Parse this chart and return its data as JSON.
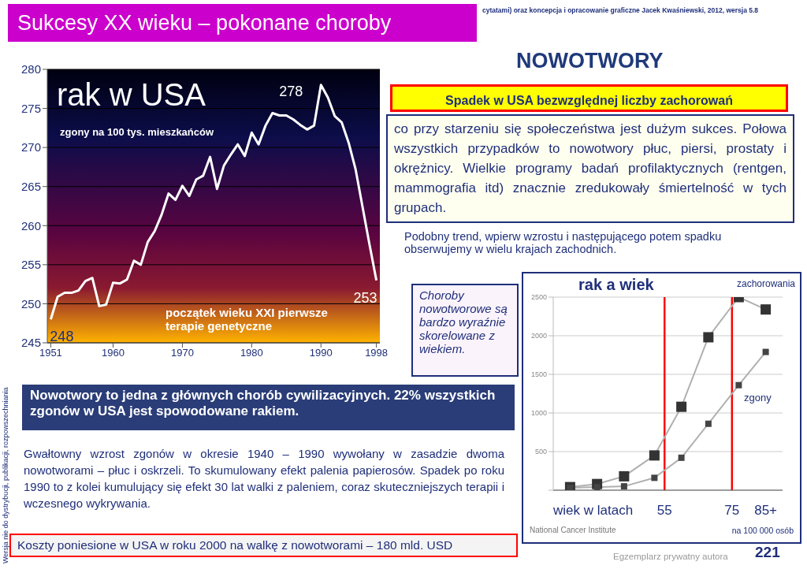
{
  "chart_data": [
    {
      "type": "line",
      "title": "rak w USA",
      "subtitle": "zgony na 100 tys. mieszkańców",
      "annotations": [
        "początek wieku XXI pierwsze terapie genetyczne"
      ],
      "x": [
        1951,
        1952,
        1953,
        1954,
        1955,
        1956,
        1957,
        1958,
        1959,
        1960,
        1961,
        1962,
        1963,
        1964,
        1965,
        1966,
        1967,
        1968,
        1969,
        1970,
        1971,
        1972,
        1973,
        1974,
        1975,
        1976,
        1977,
        1978,
        1979,
        1980,
        1981,
        1982,
        1983,
        1984,
        1985,
        1986,
        1987,
        1988,
        1989,
        1990,
        1991,
        1992,
        1993,
        1994,
        1995,
        1996,
        1997,
        1998
      ],
      "series": [
        {
          "color": "#ffffff",
          "values": [
            248,
            250.9,
            251.4,
            251.4,
            251.7,
            252.9,
            253.3,
            249.7,
            249.9,
            252.7,
            252.6,
            253.1,
            255.5,
            255,
            257.9,
            259.3,
            261.4,
            264.1,
            263.3,
            265.1,
            263.8,
            265.9,
            266.4,
            268.8,
            264.7,
            267.7,
            269.1,
            270.4,
            268.9,
            271.9,
            270.4,
            272.8,
            274.4,
            274.1,
            274.1,
            273.6,
            272.9,
            272.3,
            272.8,
            278,
            276.4,
            274,
            273.2,
            270.6,
            267.2,
            262.4,
            257.6,
            253
          ],
          "value_labels": [
            "248",
            null,
            null,
            null,
            null,
            null,
            null,
            null,
            null,
            null,
            null,
            null,
            null,
            null,
            null,
            null,
            null,
            null,
            null,
            null,
            null,
            null,
            null,
            null,
            null,
            null,
            null,
            null,
            null,
            null,
            null,
            null,
            null,
            null,
            null,
            null,
            null,
            null,
            null,
            "278",
            null,
            null,
            null,
            null,
            null,
            null,
            null,
            "253"
          ]
        }
      ],
      "xlim": [
        1950.5,
        1998.5
      ],
      "xticks": [
        1951,
        1960,
        1970,
        1980,
        1990,
        1998
      ],
      "ylim": [
        245,
        280
      ],
      "yticks": [
        245,
        250,
        255,
        260,
        265,
        270,
        275,
        280
      ],
      "grid": "y",
      "legend": false,
      "marker": "none",
      "line_style": "solid"
    },
    {
      "type": "line",
      "title": "rak a wiek",
      "xlabel": "wiek w latach",
      "annotations": [
        "na 100 000 osób",
        "National Cancer Institute"
      ],
      "x": [
        27,
        35,
        43,
        52,
        60,
        68,
        77,
        85
      ],
      "series": [
        {
          "name": "zachorowania",
          "color": "#333333",
          "values": [
            40,
            80,
            180,
            450,
            1080,
            1980,
            2500,
            2340
          ]
        },
        {
          "name": "zgony",
          "color": "#444444",
          "values": [
            30,
            40,
            50,
            160,
            420,
            860,
            1360,
            1790
          ]
        }
      ],
      "xlim": [
        22,
        90
      ],
      "xticks": [
        55,
        75,
        {
          "value": 85,
          "label": "85+"
        }
      ],
      "ylim": [
        0,
        2500
      ],
      "yticks": [
        {
          "value": 0,
          "label": null
        },
        500,
        1000,
        1500,
        2000,
        2500
      ],
      "ref_lines": [
        {
          "axis": "x",
          "value": 55,
          "color": "#ff0000"
        },
        {
          "axis": "x",
          "value": 75,
          "color": "#ff0000"
        }
      ],
      "grid": "y",
      "legend": false,
      "marker": "square",
      "line_style": "solid"
    },
    {
      "type": "other",
      "title": "Sukcesy XX wieku – pokonane choroby",
      "annotations": [
        "cytatami) oraz koncepcja i opracowanie graficzne Jacek Kwaśniewski, 2012,  wersja 5.8",
        "NOWOTWORY",
        "Spadek w USA bezwzględnej liczby zachorowań",
        "co przy starzeniu się społeczeństwa jest dużym sukces. Połowa wszystkich przypadków to nowotwory płuc, piersi, prostaty i okrężnicy. Wielkie programy badań profilaktycznych (rentgen, mammografia itd) znacznie zredukowały śmiertelność w tych grupach.",
        "Podobny trend, wpierw wzrostu i następującego potem spadku obserwujemy w wielu krajach zachodnich.",
        "Choroby nowotworowe są bardzo wyraźnie skorelowane z wiekiem.",
        "Nowotwory to jedna z głównych chorób cywilizacyjnych. 22% wszystkich zgonów w USA jest spowodowane rakiem.",
        "Gwałtowny wzrost zgonów w okresie 1940 – 1990 wywołany w zasadzie dwoma nowotworami – płuc i oskrzeli. To skumulowany efekt palenia papierosów. Spadek po roku 1990 to z kolei kumulujący się efekt 30 lat walki z paleniem, coraz skuteczniejszych terapii i wczesnego wykrywania.",
        "Koszty poniesione w USA w roku 2000 na walkę z nowotworami – 180 mld. USD",
        "Wersja nie do dystrybucji, publikacji, rozpowszechniania",
        "Egzemplarz prywatny autora",
        "221"
      ]
    }
  ]
}
